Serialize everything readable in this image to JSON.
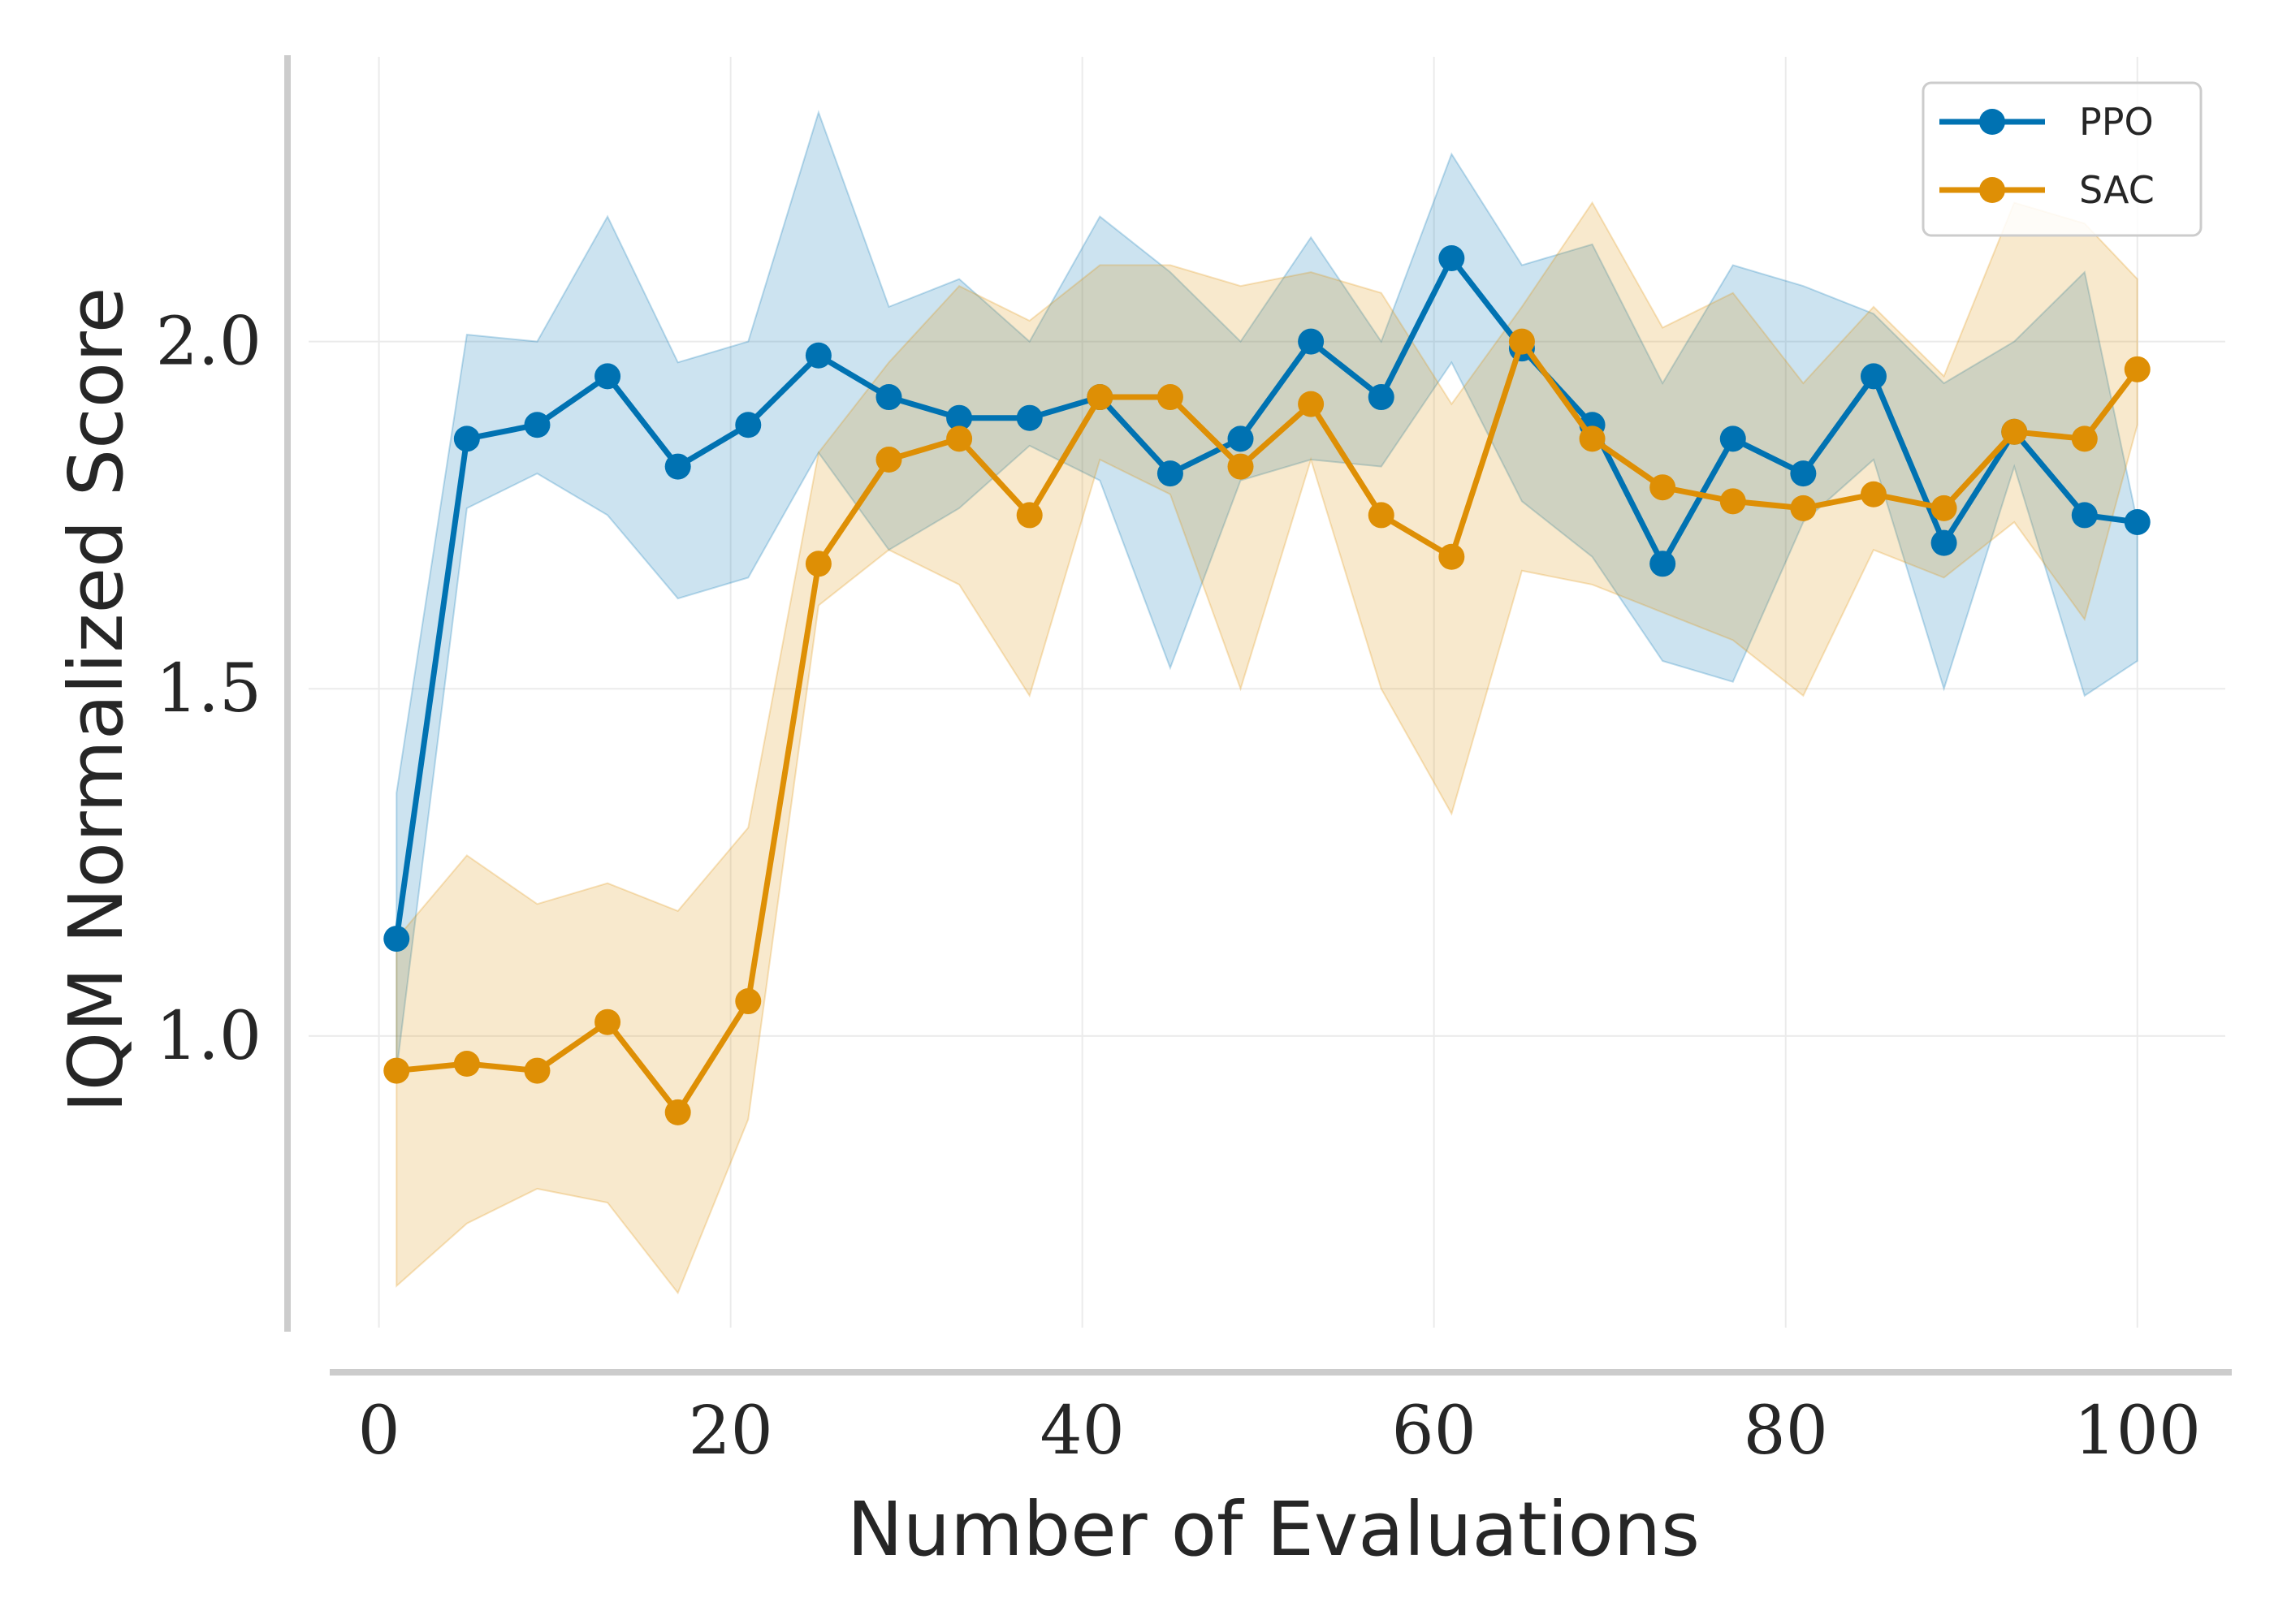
{
  "chart_data": {
    "type": "line",
    "title": "",
    "xlabel": "Number of Evaluations",
    "ylabel": "IQM Normalized Score",
    "xlim": [
      -4,
      105
    ],
    "ylim": [
      0.58,
      2.41
    ],
    "x_ticks": [
      0,
      20,
      40,
      60,
      80,
      100
    ],
    "y_ticks": [
      1.0,
      1.5,
      2.0
    ],
    "x_tick_labels": [
      "0",
      "20",
      "40",
      "60",
      "80",
      "100"
    ],
    "y_tick_labels": [
      "1.0",
      "1.5",
      "2.0"
    ],
    "grid": true,
    "legend_position": "top-right",
    "x": [
      1,
      5,
      9,
      13,
      17,
      21,
      25,
      29,
      33,
      37,
      41,
      45,
      49,
      53,
      57,
      61,
      65,
      69,
      73,
      77,
      81,
      85,
      89,
      93,
      97,
      100
    ],
    "series": [
      {
        "name": "PPO",
        "color": "#0072b2",
        "values": [
          1.14,
          1.86,
          1.88,
          1.95,
          1.82,
          1.88,
          1.98,
          1.92,
          1.89,
          1.89,
          1.92,
          1.81,
          1.86,
          2.0,
          1.92,
          2.12,
          1.99,
          1.88,
          1.68,
          1.86,
          1.81,
          1.95,
          1.71,
          1.87,
          1.75,
          1.74
        ],
        "lower": [
          0.95,
          1.76,
          1.81,
          1.75,
          1.63,
          1.66,
          1.84,
          1.7,
          1.76,
          1.85,
          1.8,
          1.53,
          1.8,
          1.83,
          1.82,
          1.97,
          1.77,
          1.69,
          1.54,
          1.51,
          1.74,
          1.83,
          1.5,
          1.82,
          1.49,
          1.54
        ],
        "upper": [
          1.35,
          2.01,
          2.0,
          2.18,
          1.97,
          2.0,
          2.33,
          2.05,
          2.09,
          2.0,
          2.18,
          2.1,
          2.0,
          2.15,
          2.0,
          2.27,
          2.11,
          2.14,
          1.94,
          2.11,
          2.08,
          2.04,
          1.94,
          2.0,
          2.1,
          1.74
        ]
      },
      {
        "name": "SAC",
        "color": "#de8f05",
        "values": [
          0.95,
          0.96,
          0.95,
          1.02,
          0.89,
          1.05,
          1.68,
          1.83,
          1.86,
          1.75,
          1.92,
          1.92,
          1.82,
          1.91,
          1.75,
          1.69,
          2.0,
          1.86,
          1.79,
          1.77,
          1.76,
          1.78,
          1.76,
          1.87,
          1.86,
          1.96
        ],
        "lower": [
          0.64,
          0.73,
          0.78,
          0.76,
          0.63,
          0.88,
          1.62,
          1.7,
          1.65,
          1.49,
          1.83,
          1.78,
          1.5,
          1.83,
          1.5,
          1.32,
          1.67,
          1.65,
          1.61,
          1.57,
          1.49,
          1.7,
          1.66,
          1.74,
          1.6,
          1.88
        ],
        "upper": [
          1.14,
          1.26,
          1.19,
          1.22,
          1.18,
          1.3,
          1.84,
          1.97,
          2.08,
          2.03,
          2.11,
          2.11,
          2.08,
          2.1,
          2.07,
          1.91,
          2.05,
          2.2,
          2.02,
          2.07,
          1.94,
          2.05,
          1.95,
          2.2,
          2.17,
          2.09
        ]
      }
    ]
  }
}
